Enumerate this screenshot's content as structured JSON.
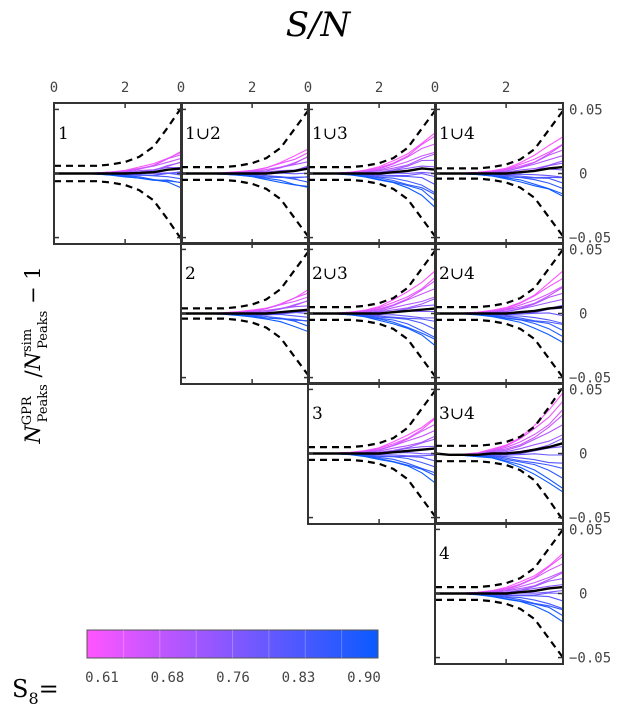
{
  "chart_data": {
    "type": "line",
    "layout": "triangular-panel-matrix",
    "title": "S/N",
    "ylabel": "N^GPR_Peaks / N^sim_Peaks − 1",
    "xlim": [
      0,
      3.6
    ],
    "ylim": [
      -0.055,
      0.055
    ],
    "x_tick_labels": [
      "0",
      "2"
    ],
    "y_tick_labels": [
      "0.05",
      "0",
      "−0.05"
    ],
    "grid": false,
    "x": [
      0,
      0.4,
      0.8,
      1.2,
      1.6,
      2.0,
      2.4,
      2.8,
      3.2,
      3.6
    ],
    "panels": [
      {
        "label": "1",
        "row": 0,
        "col": 0,
        "envelope": [
          0.006,
          0.006,
          0.006,
          0.006,
          0.007,
          0.009,
          0.013,
          0.021,
          0.036,
          0.052
        ],
        "spread": 0.5,
        "mean": [
          0,
          0,
          0,
          0,
          0,
          0,
          0.0005,
          0.001,
          0.003,
          0.004
        ]
      },
      {
        "label": "1∪2",
        "row": 0,
        "col": 1,
        "envelope": [
          0.005,
          0.005,
          0.005,
          0.005,
          0.006,
          0.008,
          0.012,
          0.02,
          0.035,
          0.05
        ],
        "spread": 0.5,
        "mean": [
          0,
          0,
          0,
          0,
          0,
          0,
          0,
          0.001,
          0.002,
          0.004
        ]
      },
      {
        "label": "1∪3",
        "row": 0,
        "col": 2,
        "envelope": [
          0.005,
          0.005,
          0.005,
          0.005,
          0.006,
          0.008,
          0.012,
          0.02,
          0.035,
          0.05
        ],
        "spread": 1.0,
        "mean": [
          0,
          0,
          0,
          0,
          0,
          0,
          0.001,
          0.002,
          0.004,
          0.003
        ]
      },
      {
        "label": "1∪4",
        "row": 0,
        "col": 3,
        "envelope": [
          0.004,
          0.004,
          0.004,
          0.004,
          0.005,
          0.007,
          0.011,
          0.019,
          0.034,
          0.049
        ],
        "spread": 0.8,
        "mean": [
          0,
          0,
          0,
          0,
          0,
          0,
          0.001,
          0.002,
          0.004,
          0.005
        ]
      },
      {
        "label": "2",
        "row": 1,
        "col": 1,
        "envelope": [
          0.004,
          0.004,
          0.004,
          0.004,
          0.005,
          0.007,
          0.011,
          0.019,
          0.034,
          0.049
        ],
        "spread": 0.5,
        "mean": [
          0,
          0,
          0,
          0,
          0,
          0,
          0,
          0.001,
          0.002,
          0.003
        ]
      },
      {
        "label": "2∪3",
        "row": 1,
        "col": 2,
        "envelope": [
          0.005,
          0.005,
          0.005,
          0.005,
          0.006,
          0.008,
          0.012,
          0.02,
          0.035,
          0.05
        ],
        "spread": 1.0,
        "mean": [
          0,
          0,
          0,
          0,
          0,
          0,
          0.001,
          0.002,
          0.003,
          0.004
        ]
      },
      {
        "label": "2∪4",
        "row": 1,
        "col": 3,
        "envelope": [
          0.005,
          0.005,
          0.005,
          0.005,
          0.006,
          0.008,
          0.012,
          0.02,
          0.035,
          0.05
        ],
        "spread": 0.9,
        "mean": [
          0,
          0,
          0,
          0,
          0,
          0,
          0.001,
          0.002,
          0.004,
          0.005
        ]
      },
      {
        "label": "3",
        "row": 2,
        "col": 2,
        "envelope": [
          0.005,
          0.005,
          0.005,
          0.005,
          0.006,
          0.008,
          0.012,
          0.02,
          0.035,
          0.05
        ],
        "spread": 0.9,
        "mean": [
          0,
          0,
          0,
          0,
          0,
          0,
          0.001,
          0.002,
          0.003,
          0.004
        ]
      },
      {
        "label": "3∪4",
        "row": 2,
        "col": 3,
        "envelope": [
          0.006,
          0.006,
          0.006,
          0.006,
          0.007,
          0.009,
          0.013,
          0.021,
          0.036,
          0.052
        ],
        "spread": 1.3,
        "mean": [
          0,
          -0.001,
          -0.001,
          -0.001,
          0,
          0,
          0.001,
          0.003,
          0.005,
          0.008
        ]
      },
      {
        "label": "4",
        "row": 3,
        "col": 3,
        "envelope": [
          0.005,
          0.005,
          0.005,
          0.005,
          0.006,
          0.008,
          0.012,
          0.02,
          0.035,
          0.05
        ],
        "spread": 0.9,
        "mean": [
          0,
          0,
          0,
          0,
          0,
          0,
          0.001,
          0.002,
          0.004,
          0.005
        ]
      }
    ],
    "colorbar": {
      "label": "S8=",
      "tick_labels": [
        "0.61",
        "0.68",
        "0.76",
        "0.83",
        "0.90"
      ],
      "range": [
        0.61,
        0.9
      ],
      "color_low": "#ff55ff",
      "color_high": "#0a5aff"
    },
    "colors": {
      "mean_line": "#000000",
      "envelope_line": "#000000",
      "frame": "#333333"
    }
  }
}
